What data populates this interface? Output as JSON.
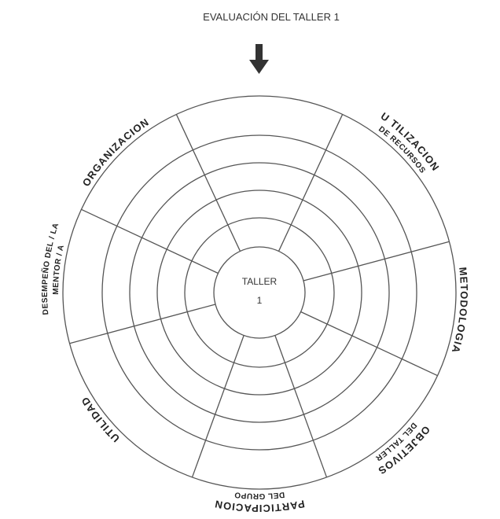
{
  "title": "EVALUACIÓN DEL TALLER 1",
  "center": {
    "line1": "TALLER",
    "line2": "1"
  },
  "sectors": [
    {
      "lines": [
        "ORGANIZACION"
      ]
    },
    {
      "lines": [
        "U TILIZACION",
        "DE RECURSOS"
      ]
    },
    {
      "lines": [
        "METODOLOGIA"
      ]
    },
    {
      "lines": [
        "OBJETIVOS",
        "DEL TALLER"
      ]
    },
    {
      "lines": [
        "PARTICIPACION",
        "DEL GRUPO"
      ]
    },
    {
      "lines": [
        "UTILIDAD"
      ]
    },
    {
      "lines": [
        "DESEMPEÑO DEL / LA",
        "MENTOR / A"
      ]
    }
  ]
}
